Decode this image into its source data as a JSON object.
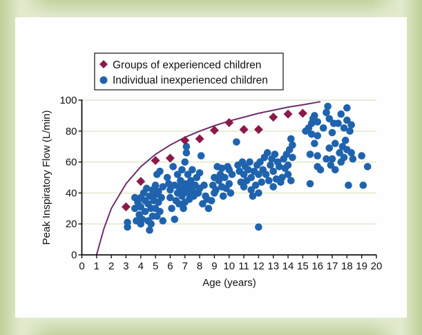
{
  "chart_data": {
    "type": "scatter",
    "title": "",
    "xlabel": "Age (years)",
    "ylabel": "Peak Inspiratory Flow (L/min)",
    "xlim": [
      0,
      20
    ],
    "ylim": [
      0,
      100
    ],
    "x_ticks": [
      "0",
      "1",
      "2",
      "3",
      "4",
      "5",
      "6",
      "7",
      "8",
      "9",
      "10",
      "11",
      "12",
      "13",
      "14",
      "15",
      "16",
      "17",
      "18",
      "19",
      "20"
    ],
    "y_ticks": [
      "0",
      "20",
      "40",
      "60",
      "80",
      "100"
    ],
    "grid": "horizontal",
    "legend_position": "top-left",
    "colors": {
      "groups": "#8b1a4a",
      "individuals": "#1f63ae",
      "curve": "#6b2d6e",
      "grid": "#dfe6c8"
    },
    "series": [
      {
        "name": "Groups of experienced children",
        "marker": "diamond",
        "points": [
          [
            3,
            31
          ],
          [
            4,
            47.5
          ],
          [
            5,
            61
          ],
          [
            6,
            62.5
          ],
          [
            7,
            74
          ],
          [
            8,
            75
          ],
          [
            9,
            80.5
          ],
          [
            10,
            85.5
          ],
          [
            11,
            81
          ],
          [
            12,
            81
          ],
          [
            13,
            89
          ],
          [
            14,
            91
          ],
          [
            15,
            91.5
          ]
        ]
      },
      {
        "name": "Individual inexperienced children",
        "marker": "circle",
        "points": [
          [
            3.1,
            18
          ],
          [
            3.1,
            21
          ],
          [
            3.6,
            30
          ],
          [
            3.6,
            37
          ],
          [
            3.7,
            22
          ],
          [
            3.8,
            34
          ],
          [
            3.9,
            26
          ],
          [
            4,
            20
          ],
          [
            4,
            31
          ],
          [
            4,
            37
          ],
          [
            4.1,
            23
          ],
          [
            4.2,
            40
          ],
          [
            4.3,
            28
          ],
          [
            4.3,
            35
          ],
          [
            4.4,
            43
          ],
          [
            4.5,
            22
          ],
          [
            4.5,
            33
          ],
          [
            4.6,
            16
          ],
          [
            4.6,
            38
          ],
          [
            4.7,
            20
          ],
          [
            4.7,
            30
          ],
          [
            4.8,
            25
          ],
          [
            4.8,
            42
          ],
          [
            4.9,
            35
          ],
          [
            5,
            30
          ],
          [
            5,
            39
          ],
          [
            5,
            45
          ],
          [
            5.1,
            25
          ],
          [
            5.1,
            52
          ],
          [
            5.2,
            34
          ],
          [
            5.2,
            41
          ],
          [
            5.3,
            28
          ],
          [
            5.3,
            54
          ],
          [
            5.4,
            37
          ],
          [
            5.5,
            22
          ],
          [
            5.5,
            44
          ],
          [
            5.8,
            50
          ],
          [
            5.9,
            46
          ],
          [
            6,
            37
          ],
          [
            6,
            42
          ],
          [
            6.1,
            30
          ],
          [
            6.2,
            57
          ],
          [
            6.3,
            23
          ],
          [
            6.3,
            45
          ],
          [
            6.4,
            35
          ],
          [
            6.5,
            40
          ],
          [
            6.5,
            52
          ],
          [
            6.6,
            33
          ],
          [
            6.6,
            44
          ],
          [
            6.7,
            48
          ],
          [
            6.8,
            38
          ],
          [
            6.8,
            55
          ],
          [
            6.9,
            30
          ],
          [
            6.9,
            42
          ],
          [
            7,
            34
          ],
          [
            7,
            46
          ],
          [
            7,
            60
          ],
          [
            7.1,
            70
          ],
          [
            7.1,
            66
          ],
          [
            7.2,
            40
          ],
          [
            7.2,
            52
          ],
          [
            7.3,
            36
          ],
          [
            7.3,
            44
          ],
          [
            7.4,
            48
          ],
          [
            7.5,
            42
          ],
          [
            7.5,
            55
          ],
          [
            7.6,
            38
          ],
          [
            7.7,
            45
          ],
          [
            7.8,
            50
          ],
          [
            7.9,
            40
          ],
          [
            8,
            43
          ],
          [
            8,
            53
          ],
          [
            8.1,
            64
          ],
          [
            8.2,
            33
          ],
          [
            8.3,
            45
          ],
          [
            8.4,
            38
          ],
          [
            8.5,
            36
          ],
          [
            8.6,
            30
          ],
          [
            8.8,
            35
          ],
          [
            8.9,
            45
          ],
          [
            9,
            40
          ],
          [
            9,
            50
          ],
          [
            9.1,
            42
          ],
          [
            9.2,
            57
          ],
          [
            9.3,
            48
          ],
          [
            9.4,
            52
          ],
          [
            9.5,
            44
          ],
          [
            9.5,
            56
          ],
          [
            9.6,
            38
          ],
          [
            9.7,
            50
          ],
          [
            9.8,
            43
          ],
          [
            9.9,
            57
          ],
          [
            10,
            46
          ],
          [
            10,
            55
          ],
          [
            10.1,
            40
          ],
          [
            10.2,
            52
          ],
          [
            10.5,
            73
          ],
          [
            10.6,
            58
          ],
          [
            10.7,
            54
          ],
          [
            10.8,
            47
          ],
          [
            10.9,
            60
          ],
          [
            11,
            52
          ],
          [
            11,
            44
          ],
          [
            11.1,
            57
          ],
          [
            11.2,
            48
          ],
          [
            11.3,
            55
          ],
          [
            11.4,
            60
          ],
          [
            11.5,
            42
          ],
          [
            11.5,
            50
          ],
          [
            11.6,
            38
          ],
          [
            11.7,
            54
          ],
          [
            11.8,
            45
          ],
          [
            11.9,
            58
          ],
          [
            12,
            18
          ],
          [
            12,
            52
          ],
          [
            12,
            40
          ],
          [
            12.1,
            60
          ],
          [
            12.2,
            47
          ],
          [
            12.3,
            55
          ],
          [
            12.4,
            63
          ],
          [
            12.5,
            52
          ],
          [
            12.6,
            66
          ],
          [
            12.7,
            48
          ],
          [
            12.8,
            58
          ],
          [
            12.9,
            62
          ],
          [
            13,
            54
          ],
          [
            13,
            44
          ],
          [
            13.1,
            65
          ],
          [
            13.2,
            49
          ],
          [
            13.3,
            60
          ],
          [
            13.4,
            57
          ],
          [
            13.5,
            47
          ],
          [
            13.6,
            50
          ],
          [
            13.7,
            62
          ],
          [
            13.8,
            56
          ],
          [
            13.9,
            65
          ],
          [
            14,
            58
          ],
          [
            14,
            52
          ],
          [
            14.1,
            68
          ],
          [
            14.2,
            75
          ],
          [
            14.2,
            48
          ],
          [
            14.3,
            71
          ],
          [
            14.3,
            63
          ],
          [
            15.2,
            80
          ],
          [
            15.4,
            82
          ],
          [
            15.5,
            65
          ],
          [
            15.5,
            46
          ],
          [
            15.6,
            85
          ],
          [
            15.6,
            78
          ],
          [
            15.7,
            88
          ],
          [
            15.8,
            90
          ],
          [
            15.8,
            72
          ],
          [
            16,
            86
          ],
          [
            16,
            77
          ],
          [
            16,
            64
          ],
          [
            16,
            57
          ],
          [
            16.2,
            55
          ],
          [
            16.4,
            82
          ],
          [
            16.6,
            92
          ],
          [
            16.6,
            62
          ],
          [
            16.7,
            96
          ],
          [
            16.8,
            69
          ],
          [
            16.8,
            88
          ],
          [
            16.9,
            58
          ],
          [
            17,
            79
          ],
          [
            17,
            62
          ],
          [
            17.1,
            85
          ],
          [
            17.2,
            72
          ],
          [
            17.2,
            55
          ],
          [
            17.4,
            85
          ],
          [
            17.5,
            66
          ],
          [
            17.6,
            91
          ],
          [
            17.6,
            60
          ],
          [
            17.7,
            70
          ],
          [
            17.8,
            63
          ],
          [
            17.8,
            82
          ],
          [
            17.9,
            74
          ],
          [
            18,
            95
          ],
          [
            18,
            68
          ],
          [
            18,
            87
          ],
          [
            18.1,
            45
          ],
          [
            18.2,
            80
          ],
          [
            18.3,
            66
          ],
          [
            18.3,
            84
          ],
          [
            18.4,
            62
          ],
          [
            19,
            64
          ],
          [
            19.1,
            45
          ],
          [
            19.4,
            57
          ]
        ]
      }
    ],
    "curve": {
      "name": "fitted curve",
      "points": [
        [
          1,
          0
        ],
        [
          1.5,
          17
        ],
        [
          2,
          30
        ],
        [
          3,
          46
        ],
        [
          4,
          57
        ],
        [
          5,
          65
        ],
        [
          6,
          71
        ],
        [
          7,
          76
        ],
        [
          8,
          80
        ],
        [
          9,
          83.5
        ],
        [
          10,
          86.5
        ],
        [
          11,
          89
        ],
        [
          12,
          91.5
        ],
        [
          13,
          93.5
        ],
        [
          14,
          95.5
        ],
        [
          15,
          97
        ],
        [
          16.2,
          99
        ]
      ]
    }
  }
}
